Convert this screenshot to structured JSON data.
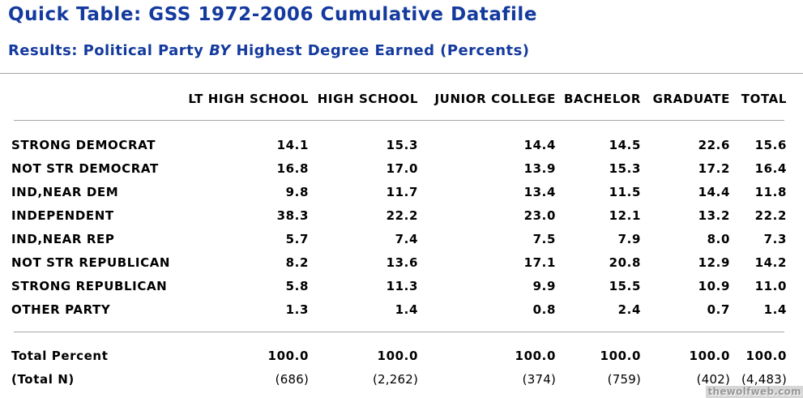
{
  "header": {
    "title": "Quick Table: GSS 1972-2006 Cumulative Datafile",
    "subtitle_prefix": "Results: Political Party",
    "subtitle_by": "BY",
    "subtitle_suffix": "Highest Degree Earned (Percents)"
  },
  "accent_color": "#143a9e",
  "chart_data": {
    "type": "table",
    "title": "Political Party BY Highest Degree Earned (Percents)",
    "columns": [
      "LT HIGH SCHOOL",
      "HIGH SCHOOL",
      "JUNIOR COLLEGE",
      "BACHELOR",
      "GRADUATE",
      "TOTAL"
    ],
    "rows": [
      {
        "label": "STRONG DEMOCRAT",
        "values": [
          "14.1",
          "15.3",
          "14.4",
          "14.5",
          "22.6",
          "15.6"
        ]
      },
      {
        "label": "NOT STR DEMOCRAT",
        "values": [
          "16.8",
          "17.0",
          "13.9",
          "15.3",
          "17.2",
          "16.4"
        ]
      },
      {
        "label": "IND,NEAR DEM",
        "values": [
          "9.8",
          "11.7",
          "13.4",
          "11.5",
          "14.4",
          "11.8"
        ]
      },
      {
        "label": "INDEPENDENT",
        "values": [
          "38.3",
          "22.2",
          "23.0",
          "12.1",
          "13.2",
          "22.2"
        ]
      },
      {
        "label": "IND,NEAR REP",
        "values": [
          "5.7",
          "7.4",
          "7.5",
          "7.9",
          "8.0",
          "7.3"
        ]
      },
      {
        "label": "NOT STR REPUBLICAN",
        "values": [
          "8.2",
          "13.6",
          "17.1",
          "20.8",
          "12.9",
          "14.2"
        ]
      },
      {
        "label": "STRONG REPUBLICAN",
        "values": [
          "5.8",
          "11.3",
          "9.9",
          "15.5",
          "10.9",
          "11.0"
        ]
      },
      {
        "label": "OTHER PARTY",
        "values": [
          "1.3",
          "1.4",
          "0.8",
          "2.4",
          "0.7",
          "1.4"
        ]
      }
    ],
    "total_percent": {
      "label": "Total Percent",
      "values": [
        "100.0",
        "100.0",
        "100.0",
        "100.0",
        "100.0",
        "100.0"
      ]
    },
    "total_n": {
      "label": "(Total N)",
      "values": [
        "(686)",
        "(2,262)",
        "(374)",
        "(759)",
        "(402)",
        "(4,483)"
      ]
    }
  },
  "watermark": "thewolfweb.com"
}
